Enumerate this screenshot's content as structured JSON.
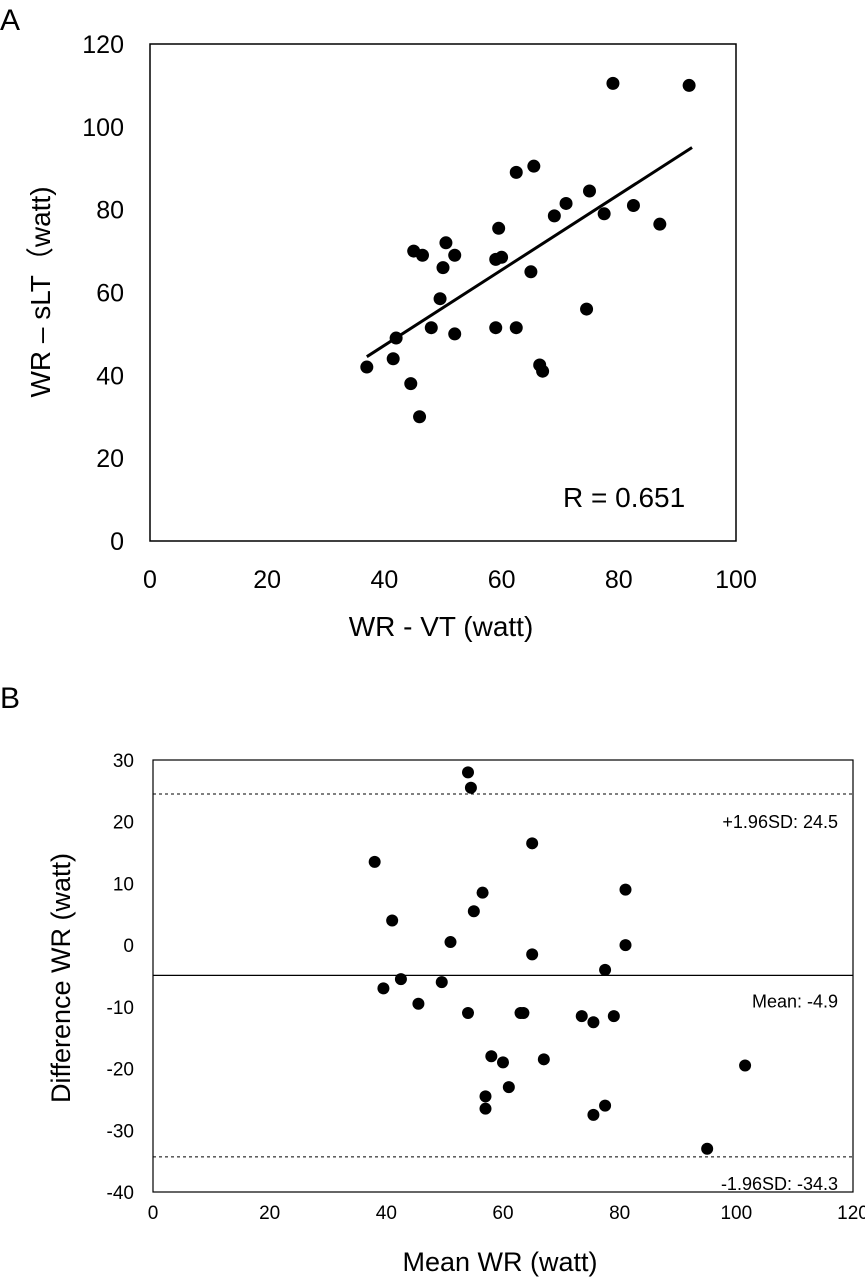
{
  "chart_data": [
    {
      "panel_label": "A",
      "type": "scatter",
      "xlabel": "WR - VT (watt)",
      "ylabel": "WR – sLT（watt)",
      "xlim": [
        0,
        100
      ],
      "ylim": [
        0,
        120
      ],
      "xticks": [
        "0",
        "20",
        "40",
        "60",
        "80",
        "100"
      ],
      "yticks": [
        "0",
        "20",
        "40",
        "60",
        "80",
        "100",
        "120"
      ],
      "annotation": "R = 0.651",
      "trendline": {
        "x": [
          37,
          92.5
        ],
        "y": [
          44.5,
          95
        ]
      },
      "points": [
        {
          "x": 37,
          "y": 42
        },
        {
          "x": 41.5,
          "y": 44
        },
        {
          "x": 42,
          "y": 49
        },
        {
          "x": 44.5,
          "y": 38
        },
        {
          "x": 45,
          "y": 70
        },
        {
          "x": 46,
          "y": 30
        },
        {
          "x": 46.5,
          "y": 69
        },
        {
          "x": 48,
          "y": 51.5
        },
        {
          "x": 49.5,
          "y": 58.5
        },
        {
          "x": 50,
          "y": 66
        },
        {
          "x": 50.5,
          "y": 72
        },
        {
          "x": 52,
          "y": 69
        },
        {
          "x": 52,
          "y": 50
        },
        {
          "x": 59,
          "y": 51.5
        },
        {
          "x": 59,
          "y": 68
        },
        {
          "x": 59.5,
          "y": 75.5
        },
        {
          "x": 60,
          "y": 68.5
        },
        {
          "x": 62.5,
          "y": 51.5
        },
        {
          "x": 62.5,
          "y": 89
        },
        {
          "x": 65,
          "y": 65
        },
        {
          "x": 65.5,
          "y": 90.5
        },
        {
          "x": 66.5,
          "y": 42.5
        },
        {
          "x": 67,
          "y": 41
        },
        {
          "x": 69,
          "y": 78.5
        },
        {
          "x": 71,
          "y": 81.5
        },
        {
          "x": 74.5,
          "y": 56
        },
        {
          "x": 75,
          "y": 84.5
        },
        {
          "x": 77.5,
          "y": 79
        },
        {
          "x": 79,
          "y": 110.5
        },
        {
          "x": 82.5,
          "y": 81
        },
        {
          "x": 87,
          "y": 76.5
        },
        {
          "x": 92,
          "y": 110
        }
      ]
    },
    {
      "panel_label": "B",
      "type": "scatter",
      "xlabel": "Mean WR (watt)",
      "ylabel": "Difference WR (watt)",
      "xlim": [
        0,
        120
      ],
      "ylim": [
        -40,
        30
      ],
      "xticks": [
        "0",
        "20",
        "40",
        "60",
        "80",
        "100",
        "120"
      ],
      "yticks": [
        "30",
        "20",
        "10",
        "0",
        "-10",
        "-20",
        "-30",
        "-40"
      ],
      "mean_line": {
        "value": -4.9,
        "label": "Mean: -4.9"
      },
      "upper_limit": {
        "value": 24.5,
        "label": "+1.96SD: 24.5"
      },
      "lower_limit": {
        "value": -34.3,
        "label": "-1.96SD: -34.3"
      },
      "points": [
        {
          "x": 38,
          "y": 13.5
        },
        {
          "x": 39.5,
          "y": -7
        },
        {
          "x": 41,
          "y": 4
        },
        {
          "x": 42.5,
          "y": -5.5
        },
        {
          "x": 45.5,
          "y": -9.5
        },
        {
          "x": 49.5,
          "y": -6
        },
        {
          "x": 51,
          "y": 0.5
        },
        {
          "x": 54,
          "y": -11
        },
        {
          "x": 54,
          "y": 28
        },
        {
          "x": 54.5,
          "y": 25.5
        },
        {
          "x": 55,
          "y": 5.5
        },
        {
          "x": 56.5,
          "y": 8.5
        },
        {
          "x": 57,
          "y": -26.5
        },
        {
          "x": 57,
          "y": -24.5
        },
        {
          "x": 58,
          "y": -18
        },
        {
          "x": 60,
          "y": -19
        },
        {
          "x": 61,
          "y": -23
        },
        {
          "x": 63,
          "y": -11
        },
        {
          "x": 63.5,
          "y": -11
        },
        {
          "x": 65,
          "y": 16.5
        },
        {
          "x": 65,
          "y": -1.5
        },
        {
          "x": 67,
          "y": -18.5
        },
        {
          "x": 73.5,
          "y": -11.5
        },
        {
          "x": 75.5,
          "y": -12.5
        },
        {
          "x": 75.5,
          "y": -27.5
        },
        {
          "x": 77.5,
          "y": -26
        },
        {
          "x": 77.5,
          "y": -4
        },
        {
          "x": 79,
          "y": -11.5
        },
        {
          "x": 81,
          "y": 9
        },
        {
          "x": 81,
          "y": 0
        },
        {
          "x": 95,
          "y": -33
        },
        {
          "x": 101.5,
          "y": -19.5
        }
      ]
    }
  ]
}
